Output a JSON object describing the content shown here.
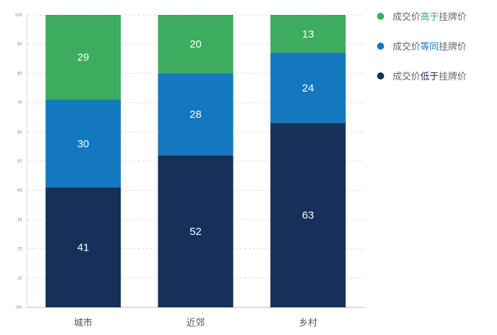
{
  "chart_data": {
    "type": "bar",
    "stacked": true,
    "categories": [
      "城市",
      "近郊",
      "乡村"
    ],
    "series": [
      {
        "name": "成交价低于挂牌价",
        "color": "#16305a",
        "values": [
          41,
          52,
          63
        ]
      },
      {
        "name": "成交价等同挂牌价",
        "color": "#1478be",
        "values": [
          30,
          28,
          24
        ]
      },
      {
        "name": "成交价高于挂牌价",
        "color": "#3eac5f",
        "values": [
          29,
          20,
          13
        ]
      }
    ],
    "y_ticks": [
      "0%",
      "10",
      "20",
      "30",
      "40",
      "50",
      "60",
      "70",
      "80",
      "90",
      "100"
    ],
    "ylim": [
      0,
      100
    ],
    "grid": true,
    "legend_position": "right"
  },
  "legend": [
    {
      "prefix": "成交价",
      "highlight": "高于",
      "suffix": "挂牌价",
      "color": "#3eac5f"
    },
    {
      "prefix": "成交价",
      "highlight": "等同",
      "suffix": "挂牌价",
      "color": "#1478be"
    },
    {
      "prefix": "成交价",
      "highlight": "低于",
      "suffix": "挂牌价",
      "color": "#16305a"
    }
  ]
}
